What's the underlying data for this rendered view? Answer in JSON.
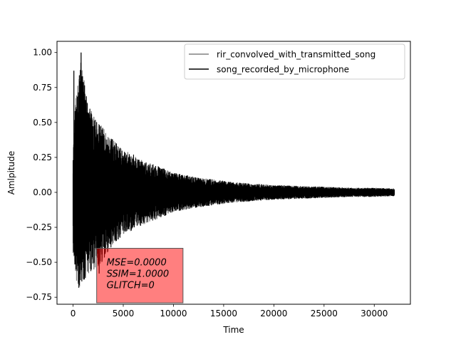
{
  "chart_data": {
    "type": "line",
    "title": "",
    "xlabel": "Time",
    "ylabel": "Amlpitude",
    "xlim": [
      -1600,
      33600
    ],
    "ylim": [
      -0.8,
      1.08
    ],
    "xticks": [
      0,
      5000,
      10000,
      15000,
      20000,
      25000,
      30000
    ],
    "xtick_labels": [
      "0",
      "5000",
      "10000",
      "15000",
      "20000",
      "25000",
      "30000"
    ],
    "yticks": [
      -0.75,
      -0.5,
      -0.25,
      0.0,
      0.25,
      0.5,
      0.75,
      1.0
    ],
    "ytick_labels": [
      "−0.75",
      "−0.50",
      "−0.25",
      "0.00",
      "0.25",
      "0.50",
      "0.75",
      "1.00"
    ],
    "legend_position": "top-right",
    "series": [
      {
        "name": "rir_convolved_with_transmitted_song",
        "color": "#808080",
        "envelope": {
          "x": [
            0,
            100,
            300,
            500,
            800,
            1200,
            1600,
            2000,
            2500,
            3000,
            3500,
            4000,
            5000,
            6000,
            7000,
            8000,
            9000,
            10000,
            12000,
            14000,
            16000,
            18000,
            20000,
            22000,
            24000,
            26000,
            28000,
            30000,
            32000
          ],
          "upper": [
            0.3,
            0.5,
            0.7,
            0.8,
            0.95,
            0.75,
            0.62,
            0.55,
            0.5,
            0.46,
            0.4,
            0.38,
            0.3,
            0.27,
            0.22,
            0.2,
            0.17,
            0.14,
            0.11,
            0.09,
            0.07,
            0.06,
            0.05,
            0.045,
            0.04,
            0.035,
            0.03,
            0.03,
            0.025
          ],
          "lower": [
            -0.45,
            -0.55,
            -0.65,
            -0.7,
            -0.7,
            -0.62,
            -0.58,
            -0.55,
            -0.55,
            -0.48,
            -0.42,
            -0.38,
            -0.3,
            -0.27,
            -0.23,
            -0.2,
            -0.17,
            -0.14,
            -0.11,
            -0.09,
            -0.07,
            -0.06,
            -0.05,
            -0.045,
            -0.04,
            -0.035,
            -0.03,
            -0.03,
            -0.025
          ]
        },
        "peaks": [
          [
            80,
            0.87
          ],
          [
            800,
            1.0
          ],
          [
            1500,
            0.57
          ],
          [
            2500,
            0.42
          ],
          [
            2600,
            -0.58
          ]
        ]
      },
      {
        "name": "song_recorded_by_microphone",
        "color": "#000000",
        "envelope": {
          "x": [
            0,
            100,
            300,
            500,
            800,
            1200,
            1600,
            2000,
            2500,
            3000,
            3500,
            4000,
            5000,
            6000,
            7000,
            8000,
            9000,
            10000,
            12000,
            14000,
            16000,
            18000,
            20000,
            22000,
            24000,
            26000,
            28000,
            30000,
            32000
          ],
          "upper": [
            0.3,
            0.5,
            0.7,
            0.8,
            0.95,
            0.75,
            0.62,
            0.55,
            0.5,
            0.46,
            0.4,
            0.38,
            0.3,
            0.27,
            0.22,
            0.2,
            0.17,
            0.14,
            0.11,
            0.09,
            0.07,
            0.06,
            0.05,
            0.045,
            0.04,
            0.035,
            0.03,
            0.03,
            0.025
          ],
          "lower": [
            -0.45,
            -0.55,
            -0.65,
            -0.7,
            -0.7,
            -0.62,
            -0.58,
            -0.55,
            -0.55,
            -0.48,
            -0.42,
            -0.38,
            -0.3,
            -0.27,
            -0.23,
            -0.2,
            -0.17,
            -0.14,
            -0.11,
            -0.09,
            -0.07,
            -0.06,
            -0.05,
            -0.045,
            -0.04,
            -0.035,
            -0.03,
            -0.03,
            -0.025
          ]
        },
        "peaks": [
          [
            80,
            0.87
          ],
          [
            800,
            1.0
          ],
          [
            1500,
            0.57
          ],
          [
            2500,
            0.42
          ],
          [
            2600,
            -0.58
          ]
        ]
      }
    ],
    "annotation": {
      "lines": [
        "MSE=0.0000",
        "SSIM=1.0000",
        "GLITCH=0"
      ],
      "box_color": "#ff0000",
      "box_alpha": 0.5,
      "x_range": [
        2350,
        10950
      ],
      "y_range": [
        -0.79,
        -0.4
      ]
    }
  }
}
